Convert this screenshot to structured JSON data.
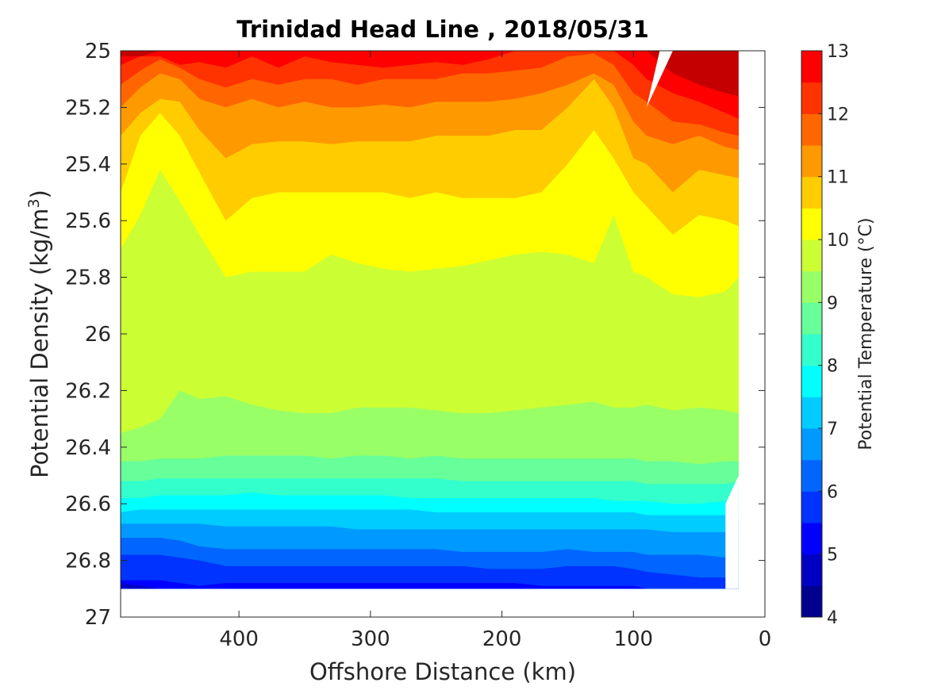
{
  "chart_data": {
    "type": "contour",
    "title": "Trinidad Head Line , 2018/05/31",
    "xlabel": "Offshore Distance (km)",
    "ylabel_main": "Potential Density (kg/m",
    "ylabel_sup": "3",
    "ylabel_close": ")",
    "colorbar_label": "Potential Temperature (°C)",
    "xlim": [
      490,
      0
    ],
    "ylim": [
      25,
      27
    ],
    "x_reversed": true,
    "y_reversed": true,
    "x_ticks": [
      "400",
      "300",
      "200",
      "100",
      "0"
    ],
    "x_tick_values": [
      400,
      300,
      200,
      100,
      0
    ],
    "y_ticks": [
      "25",
      "25.2",
      "25.4",
      "25.6",
      "25.8",
      "26",
      "26.2",
      "26.4",
      "26.6",
      "26.8",
      "27"
    ],
    "y_tick_values": [
      25,
      25.2,
      25.4,
      25.6,
      25.8,
      26,
      26.2,
      26.4,
      26.6,
      26.8,
      27
    ],
    "colorbar_ticks": [
      "13",
      "12",
      "11",
      "10",
      "9",
      "8",
      "7",
      "6",
      "5",
      "4"
    ],
    "colorbar_tick_values": [
      13,
      12,
      11,
      10,
      9,
      8,
      7,
      6,
      5,
      4
    ],
    "level_bounds": [
      4,
      4.5,
      5,
      5.5,
      6,
      6.5,
      7,
      7.5,
      8,
      8.5,
      9,
      9.5,
      10,
      10.5,
      11,
      11.5,
      12,
      12.5,
      13
    ],
    "level_colors": [
      "#00008f",
      "#0000c4",
      "#0000ff",
      "#0033ff",
      "#0066ff",
      "#0099ff",
      "#00ccff",
      "#00ffff",
      "#33ffcc",
      "#66ff99",
      "#99ff66",
      "#ccff33",
      "#ffff00",
      "#ffcc00",
      "#ff9900",
      "#ff6600",
      "#ff3300",
      "#ff0000",
      "#c40000"
    ],
    "data_extent": {
      "x_range": [
        490,
        20
      ],
      "density_bottom": 26.9,
      "nan_notch_top": [
        [
          80,
          25.0
        ],
        [
          90,
          25.2
        ],
        [
          70,
          25.0
        ]
      ],
      "nan_nearshore_bottom": [
        [
          30,
          26.6
        ],
        [
          20,
          26.5
        ]
      ]
    },
    "contour_x": [
      490,
      475,
      460,
      445,
      430,
      410,
      390,
      370,
      350,
      330,
      310,
      290,
      270,
      250,
      230,
      210,
      190,
      170,
      150,
      130,
      115,
      100,
      90,
      70,
      50,
      30,
      20
    ],
    "boundaries": [
      {
        "level": 12.5,
        "density": [
          25.02,
          25.02,
          25.0,
          25.0,
          25.0,
          25.0,
          25.0,
          25.0,
          25.0,
          25.0,
          25.0,
          25.0,
          25.0,
          25.0,
          25.0,
          25.0,
          25.0,
          25.0,
          25.0,
          25.0,
          25.0,
          25.0,
          25.0,
          25.08,
          25.12,
          25.15,
          25.16
        ]
      },
      {
        "level": 12.0,
        "density": [
          25.05,
          25.02,
          25.02,
          25.05,
          25.04,
          25.06,
          25.02,
          25.06,
          25.02,
          25.04,
          25.05,
          25.06,
          25.05,
          25.04,
          25.05,
          25.03,
          25.0,
          25.0,
          25.0,
          25.0,
          25.0,
          25.05,
          25.1,
          25.15,
          25.18,
          25.22,
          25.24
        ]
      },
      {
        "level": 11.5,
        "density": [
          25.12,
          25.07,
          25.03,
          25.06,
          25.1,
          25.13,
          25.1,
          25.12,
          25.1,
          25.1,
          25.12,
          25.1,
          25.1,
          25.1,
          25.08,
          25.08,
          25.07,
          25.06,
          25.02,
          25.01,
          25.05,
          25.15,
          25.18,
          25.25,
          25.26,
          25.29,
          25.3
        ]
      },
      {
        "level": 11.0,
        "density": [
          25.2,
          25.13,
          25.08,
          25.1,
          25.17,
          25.2,
          25.17,
          25.2,
          25.18,
          25.2,
          25.2,
          25.19,
          25.2,
          25.18,
          25.18,
          25.18,
          25.17,
          25.15,
          25.12,
          25.08,
          25.12,
          25.25,
          25.3,
          25.33,
          25.3,
          25.34,
          25.35
        ]
      },
      {
        "level": 10.5,
        "density": [
          25.3,
          25.22,
          25.17,
          25.18,
          25.28,
          25.38,
          25.33,
          25.32,
          25.32,
          25.33,
          25.32,
          25.32,
          25.32,
          25.3,
          25.3,
          25.3,
          25.28,
          25.28,
          25.2,
          25.1,
          25.2,
          25.38,
          25.4,
          25.5,
          25.42,
          25.44,
          25.45
        ]
      },
      {
        "level": 10.0,
        "density": [
          25.5,
          25.3,
          25.22,
          25.3,
          25.43,
          25.6,
          25.52,
          25.5,
          25.5,
          25.5,
          25.5,
          25.5,
          25.52,
          25.5,
          25.52,
          25.52,
          25.52,
          25.5,
          25.4,
          25.28,
          25.38,
          25.5,
          25.55,
          25.65,
          25.58,
          25.6,
          25.62
        ]
      },
      {
        "level": 9.5,
        "density": [
          25.7,
          25.58,
          25.42,
          25.53,
          25.65,
          25.8,
          25.78,
          25.78,
          25.78,
          25.72,
          25.75,
          25.77,
          25.78,
          25.77,
          25.76,
          25.74,
          25.72,
          25.71,
          25.72,
          25.75,
          25.58,
          25.78,
          25.8,
          25.86,
          25.87,
          25.85,
          25.8
        ]
      },
      {
        "level": 9.0,
        "density": [
          26.35,
          26.33,
          26.3,
          26.2,
          26.23,
          26.22,
          26.25,
          26.27,
          26.28,
          26.28,
          26.26,
          26.26,
          26.26,
          26.27,
          26.28,
          26.28,
          26.27,
          26.26,
          26.25,
          26.24,
          26.26,
          26.26,
          26.25,
          26.27,
          26.26,
          26.27,
          26.28
        ]
      },
      {
        "level": 8.5,
        "density": [
          26.45,
          26.45,
          26.44,
          26.44,
          26.44,
          26.43,
          26.43,
          26.43,
          26.43,
          26.44,
          26.43,
          26.43,
          26.44,
          26.43,
          26.44,
          26.44,
          26.44,
          26.44,
          26.44,
          26.44,
          26.44,
          26.44,
          26.45,
          26.45,
          26.46,
          26.45,
          26.45
        ]
      },
      {
        "level": 8.0,
        "density": [
          26.52,
          26.52,
          26.51,
          26.51,
          26.51,
          26.51,
          26.51,
          26.51,
          26.51,
          26.51,
          26.51,
          26.51,
          26.51,
          26.51,
          26.52,
          26.52,
          26.52,
          26.52,
          26.52,
          26.52,
          26.52,
          26.52,
          26.53,
          26.53,
          26.53,
          26.53,
          26.52
        ]
      },
      {
        "level": 7.5,
        "density": [
          26.58,
          26.58,
          26.57,
          26.57,
          26.57,
          26.57,
          26.56,
          26.57,
          26.57,
          26.57,
          26.57,
          26.57,
          26.58,
          26.58,
          26.58,
          26.58,
          26.58,
          26.58,
          26.58,
          26.58,
          26.59,
          26.59,
          26.59,
          26.6,
          26.6,
          26.59,
          26.58
        ]
      },
      {
        "level": 7.0,
        "density": [
          26.63,
          26.62,
          26.62,
          26.62,
          26.62,
          26.62,
          26.62,
          26.62,
          26.62,
          26.62,
          26.62,
          26.62,
          26.62,
          26.63,
          26.63,
          26.63,
          26.63,
          26.63,
          26.63,
          26.63,
          26.63,
          26.63,
          26.64,
          26.64,
          26.64,
          26.64,
          26.64
        ]
      },
      {
        "level": 6.5,
        "density": [
          26.67,
          26.67,
          26.67,
          26.67,
          26.67,
          26.68,
          26.68,
          26.68,
          26.68,
          26.68,
          26.69,
          26.69,
          26.69,
          26.69,
          26.69,
          26.69,
          26.69,
          26.69,
          26.69,
          26.69,
          26.69,
          26.69,
          26.69,
          26.7,
          26.7,
          26.7,
          26.7
        ]
      },
      {
        "level": 6.0,
        "density": [
          26.72,
          26.72,
          26.72,
          26.73,
          26.75,
          26.76,
          26.76,
          26.76,
          26.76,
          26.76,
          26.76,
          26.76,
          26.76,
          26.76,
          26.77,
          26.77,
          26.77,
          26.77,
          26.76,
          26.77,
          26.77,
          26.77,
          26.78,
          26.78,
          26.78,
          26.79,
          26.79
        ]
      },
      {
        "level": 5.5,
        "density": [
          26.78,
          26.78,
          26.78,
          26.79,
          26.8,
          26.82,
          26.82,
          26.82,
          26.82,
          26.82,
          26.82,
          26.82,
          26.82,
          26.82,
          26.82,
          26.83,
          26.83,
          26.83,
          26.82,
          26.82,
          26.82,
          26.83,
          26.84,
          26.85,
          26.86,
          26.86,
          26.86
        ]
      },
      {
        "level": 5.0,
        "density": [
          26.87,
          26.87,
          26.87,
          26.88,
          26.89,
          26.88,
          26.88,
          26.88,
          26.88,
          26.88,
          26.88,
          26.88,
          26.88,
          26.88,
          26.88,
          26.88,
          26.88,
          26.89,
          26.89,
          26.89,
          26.89,
          26.89,
          26.9,
          26.9,
          26.9,
          26.9,
          26.9
        ]
      },
      {
        "level": 4.5,
        "density": [
          26.88,
          26.89,
          26.9,
          26.9,
          26.9,
          26.9,
          26.9,
          26.9,
          26.9,
          26.9,
          26.9,
          26.9,
          26.9,
          26.9,
          26.9,
          26.9,
          26.9,
          26.9,
          26.9,
          26.9,
          26.9,
          26.9,
          26.9,
          26.9,
          26.9,
          26.9,
          26.9
        ]
      }
    ],
    "top_fill_color": "#c40000",
    "grid": false,
    "colorbar_position": "right"
  }
}
